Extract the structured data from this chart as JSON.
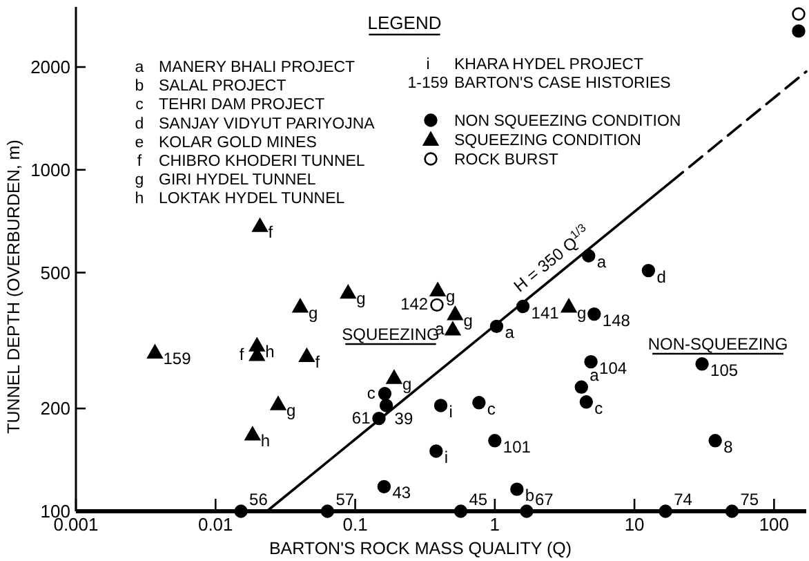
{
  "chart_data": {
    "type": "scatter",
    "xlabel": "BARTON'S ROCK MASS QUALITY (Q)",
    "ylabel": "TUNNEL DEPTH (OVERBURDEN, m)",
    "legend_title": "LEGEND",
    "legend": "top",
    "log": "xy",
    "grid": false,
    "xlim": [
      0.001,
      170
    ],
    "ylim": [
      100,
      3000
    ],
    "xticks": [
      0.001,
      0.01,
      0.1,
      1,
      10,
      100
    ],
    "yticks": [
      100,
      200,
      500,
      1000,
      2000
    ],
    "series": [
      {
        "name": "NON SQUEEZING CONDITION",
        "marker": "circle",
        "color": "#000000",
        "x": [
          0.0152,
          0.0633,
          0.163,
          0.167,
          0.148,
          0.161,
          4.7,
          12.6,
          1.03,
          1.59,
          5.15,
          4.88,
          30.5,
          4.17,
          4.52,
          0.41,
          0.77,
          1.0,
          37.9,
          0.38,
          1.44,
          0.57,
          1.69,
          16.7,
          50,
          150
        ],
        "values": [
          100,
          100,
          221,
          204,
          187,
          118,
          560,
          507,
          348,
          398,
          378,
          274,
          270,
          231,
          209,
          204,
          208,
          161,
          161,
          150,
          116,
          100,
          100,
          100,
          100,
          2550
        ]
      },
      {
        "name": "SQUEEZING CONDITION",
        "marker": "triangle",
        "color": "#000000",
        "x": [
          0.0208,
          0.0404,
          0.089,
          0.00368,
          0.0198,
          0.0198,
          0.045,
          0.19,
          0.0281,
          0.0184,
          0.39,
          0.52,
          0.5,
          3.39
        ],
        "values": [
          685,
          398,
          437,
          292,
          306,
          287,
          285,
          246,
          206,
          168,
          444,
          378,
          341,
          398
        ]
      },
      {
        "name": "ROCK BURST",
        "marker": "circle",
        "color": "#ffffff",
        "x": [
          0.385,
          150
        ],
        "values": [
          402,
          2860
        ]
      },
      {
        "type": "line",
        "color": "#000000",
        "line_style": "solid",
        "marker": "none",
        "x": [
          0.0233,
          18
        ],
        "values": [
          100,
          917
        ]
      },
      {
        "type": "line",
        "color": "#000000",
        "line_style": "dashed",
        "marker": "none",
        "x": [
          18,
          170
        ],
        "values": [
          917,
          1940
        ]
      }
    ],
    "annotations": [
      "a MANERY BHALI PROJECT",
      "b SALAL PROJECT",
      "c TEHRI DAM PROJECT",
      "d SANJAY VIDYUT PARIYOJNA",
      "e KOLAR GOLD MINES",
      "f CHIBRO KHODERI TUNNEL",
      "g GIRI HYDEL TUNNEL",
      "h LOKTAK HYDEL TUNNEL",
      "i KHARA HYDEL PROJECT",
      "1-159 BARTON'S CASE HISTORIES",
      "SQUEEZING",
      "NON-SQUEEZING",
      {
        "text": "H = 350 Q$^{1/3}$",
        "x": 3,
        "y": 505
      },
      {
        "text": "56",
        "x": 0.0152,
        "y": 100
      },
      {
        "text": "57",
        "x": 0.0633,
        "y": 100
      },
      {
        "text": "c",
        "x": 0.163,
        "y": 221
      },
      {
        "text": "39",
        "x": 0.167,
        "y": 204
      },
      {
        "text": "61",
        "x": 0.148,
        "y": 187
      },
      {
        "text": "43",
        "x": 0.161,
        "y": 118
      },
      {
        "text": "a",
        "x": 4.7,
        "y": 560
      },
      {
        "text": "d",
        "x": 12.6,
        "y": 507
      },
      {
        "text": "a",
        "x": 1.03,
        "y": 348
      },
      {
        "text": "141",
        "x": 1.59,
        "y": 398
      },
      {
        "text": "148",
        "x": 5.15,
        "y": 378
      },
      {
        "text": "104",
        "x": 4.88,
        "y": 274
      },
      {
        "text": "105",
        "x": 30.5,
        "y": 270
      },
      {
        "text": "a",
        "x": 4.17,
        "y": 231
      },
      {
        "text": "c",
        "x": 4.52,
        "y": 209
      },
      {
        "text": "i",
        "x": 0.41,
        "y": 204
      },
      {
        "text": "c",
        "x": 0.77,
        "y": 208
      },
      {
        "text": "101",
        "x": 1.0,
        "y": 161
      },
      {
        "text": "8",
        "x": 37.9,
        "y": 161
      },
      {
        "text": "i",
        "x": 0.38,
        "y": 150
      },
      {
        "text": "b",
        "x": 1.44,
        "y": 116
      },
      {
        "text": "45",
        "x": 0.57,
        "y": 100
      },
      {
        "text": "67",
        "x": 1.69,
        "y": 100
      },
      {
        "text": "74",
        "x": 16.7,
        "y": 100
      },
      {
        "text": "75",
        "x": 50,
        "y": 100
      },
      {
        "text": "f",
        "x": 0.0208,
        "y": 685
      },
      {
        "text": "g",
        "x": 0.0404,
        "y": 398
      },
      {
        "text": "g",
        "x": 0.089,
        "y": 437
      },
      {
        "text": "159",
        "x": 0.00368,
        "y": 292
      },
      {
        "text": "h",
        "x": 0.0198,
        "y": 306
      },
      {
        "text": "f",
        "x": 0.0198,
        "y": 287
      },
      {
        "text": "f",
        "x": 0.045,
        "y": 285
      },
      {
        "text": "g",
        "x": 0.19,
        "y": 246
      },
      {
        "text": "g",
        "x": 0.0281,
        "y": 206
      },
      {
        "text": "h",
        "x": 0.0184,
        "y": 168
      },
      {
        "text": "g",
        "x": 0.39,
        "y": 444
      },
      {
        "text": "g",
        "x": 0.52,
        "y": 378
      },
      {
        "text": "a",
        "x": 0.5,
        "y": 341
      },
      {
        "text": "g",
        "x": 3.39,
        "y": 398
      },
      {
        "text": "142",
        "x": 0.385,
        "y": 402
      }
    ]
  }
}
